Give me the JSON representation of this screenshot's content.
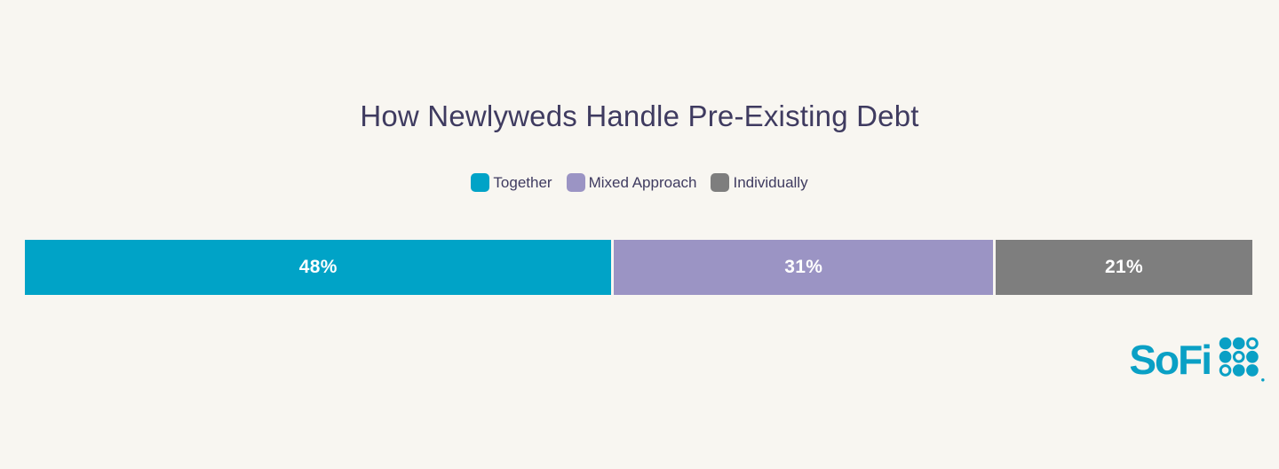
{
  "page": {
    "background_color": "#f8f6f1"
  },
  "chart_data": {
    "type": "bar",
    "variant": "horizontal-stacked-100percent",
    "title": "How Newlyweds Handle Pre-Existing Debt",
    "categories": [
      "Together",
      "Mixed Approach",
      "Individually"
    ],
    "series": [
      {
        "name": "Together",
        "value": 48,
        "value_label": "48%",
        "color": "#00a3c7"
      },
      {
        "name": "Mixed Approach",
        "value": 31,
        "value_label": "31%",
        "color": "#9b94c4"
      },
      {
        "name": "Individually",
        "value": 21,
        "value_label": "21%",
        "color": "#7e7e7e"
      }
    ],
    "total": 100,
    "legend_position": "top-center",
    "value_label_color": "#ffffff",
    "title_color": "#3f3b60",
    "legend_text_color": "#3f3b60",
    "axes_visible": false,
    "grid": false
  },
  "logo": {
    "text": "SoFi",
    "color": "#0aa0c5",
    "icon": "sofi-dots-icon",
    "dot_pattern": [
      [
        "filled",
        "filled",
        "hollow"
      ],
      [
        "filled",
        "hollow",
        "filled"
      ],
      [
        "hollow",
        "filled",
        "filled"
      ]
    ]
  }
}
